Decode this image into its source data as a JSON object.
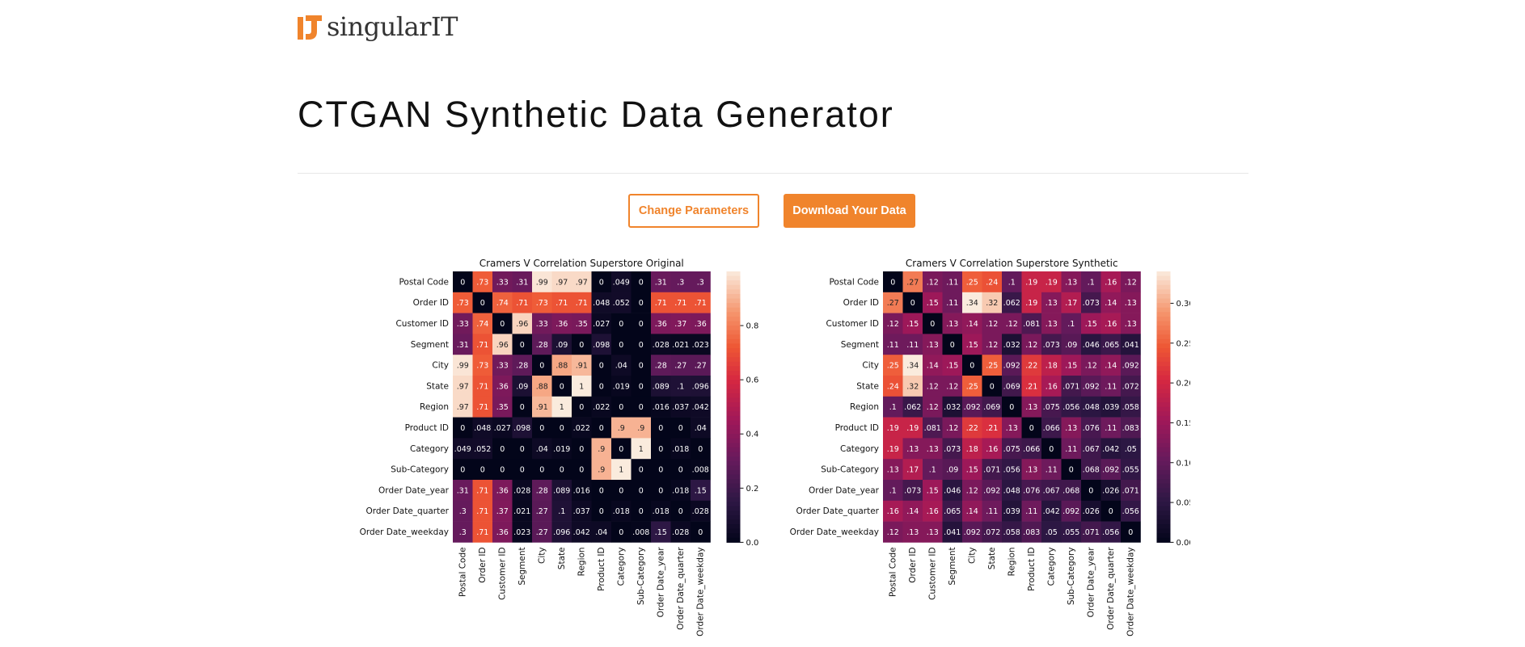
{
  "header": {
    "logo_text": "singularIT"
  },
  "page": {
    "title": "CTGAN Synthetic Data Generator"
  },
  "actions": {
    "change_label": "Change Parameters",
    "download_label": "Download Your Data"
  },
  "colors": {
    "accent": "#f0842c"
  },
  "chart_data": [
    {
      "type": "heatmap",
      "title": "Cramers V Correlation Superstore Original",
      "labels": [
        "Postal Code",
        "Order ID",
        "Customer ID",
        "Segment",
        "City",
        "State",
        "Region",
        "Product ID",
        "Category",
        "Sub-Category",
        "Order Date_year",
        "Order Date_quarter",
        "Order Date_weekday"
      ],
      "values": [
        [
          0,
          0.73,
          0.33,
          0.31,
          0.99,
          0.97,
          0.97,
          0,
          0.049,
          0,
          0.31,
          0.3,
          0.3
        ],
        [
          0.73,
          0,
          0.74,
          0.71,
          0.73,
          0.71,
          0.71,
          0.048,
          0.052,
          0,
          0.71,
          0.71,
          0.71
        ],
        [
          0.33,
          0.74,
          0,
          0.96,
          0.33,
          0.36,
          0.35,
          0.027,
          0,
          0,
          0.36,
          0.37,
          0.36
        ],
        [
          0.31,
          0.71,
          0.96,
          0,
          0.28,
          0.09,
          0,
          0.098,
          0,
          0,
          0.028,
          0.021,
          0.023
        ],
        [
          0.99,
          0.73,
          0.33,
          0.28,
          0,
          0.88,
          0.91,
          0,
          0.04,
          0,
          0.28,
          0.27,
          0.27
        ],
        [
          0.97,
          0.71,
          0.36,
          0.09,
          0.88,
          0,
          1,
          0,
          0.019,
          0,
          0.089,
          0.1,
          0.096
        ],
        [
          0.97,
          0.71,
          0.35,
          0,
          0.91,
          1,
          0,
          0.022,
          0,
          0,
          0.016,
          0.037,
          0.042
        ],
        [
          0,
          0.048,
          0.027,
          0.098,
          0,
          0,
          0.022,
          0,
          0.9,
          0.9,
          0,
          0,
          0.04
        ],
        [
          0.049,
          0.052,
          0,
          0,
          0.04,
          0.019,
          0,
          0.9,
          0,
          1,
          0,
          0.018,
          0
        ],
        [
          0,
          0,
          0,
          0,
          0,
          0,
          0,
          0.9,
          1,
          0,
          0,
          0,
          0.008
        ],
        [
          0.31,
          0.71,
          0.36,
          0.028,
          0.28,
          0.089,
          0.016,
          0,
          0,
          0,
          0,
          0.018,
          0.15
        ],
        [
          0.3,
          0.71,
          0.37,
          0.021,
          0.27,
          0.1,
          0.037,
          0,
          0.018,
          0,
          0.018,
          0,
          0.028
        ],
        [
          0.3,
          0.71,
          0.36,
          0.023,
          0.27,
          0.096,
          0.042,
          0.04,
          0,
          0.008,
          0.15,
          0.028,
          0
        ]
      ],
      "vmin": 0,
      "vmax": 1,
      "colorbar_ticks": [
        "0.0",
        "0.2",
        "0.4",
        "0.6",
        "0.8"
      ],
      "colorbar_tick_values": [
        0,
        0.2,
        0.4,
        0.6,
        0.8
      ]
    },
    {
      "type": "heatmap",
      "title": "Cramers V Correlation Superstore Synthetic",
      "labels": [
        "Postal Code",
        "Order ID",
        "Customer ID",
        "Segment",
        "City",
        "State",
        "Region",
        "Product ID",
        "Category",
        "Sub-Category",
        "Order Date_year",
        "Order Date_quarter",
        "Order Date_weekday"
      ],
      "values": [
        [
          0,
          0.27,
          0.12,
          0.11,
          0.25,
          0.24,
          0.1,
          0.19,
          0.19,
          0.13,
          0.1,
          0.16,
          0.12
        ],
        [
          0.27,
          0,
          0.15,
          0.11,
          0.34,
          0.32,
          0.062,
          0.19,
          0.13,
          0.17,
          0.073,
          0.14,
          0.13
        ],
        [
          0.12,
          0.15,
          0,
          0.13,
          0.14,
          0.12,
          0.12,
          0.081,
          0.13,
          0.1,
          0.15,
          0.16,
          0.13
        ],
        [
          0.11,
          0.11,
          0.13,
          0,
          0.15,
          0.12,
          0.032,
          0.12,
          0.073,
          0.09,
          0.046,
          0.065,
          0.041
        ],
        [
          0.25,
          0.34,
          0.14,
          0.15,
          0,
          0.25,
          0.092,
          0.22,
          0.18,
          0.15,
          0.12,
          0.14,
          0.092
        ],
        [
          0.24,
          0.32,
          0.12,
          0.12,
          0.25,
          0,
          0.069,
          0.21,
          0.16,
          0.071,
          0.092,
          0.11,
          0.072
        ],
        [
          0.1,
          0.062,
          0.12,
          0.032,
          0.092,
          0.069,
          0,
          0.13,
          0.075,
          0.056,
          0.048,
          0.039,
          0.058
        ],
        [
          0.19,
          0.19,
          0.081,
          0.12,
          0.22,
          0.21,
          0.13,
          0,
          0.066,
          0.13,
          0.076,
          0.11,
          0.083
        ],
        [
          0.19,
          0.13,
          0.13,
          0.073,
          0.18,
          0.16,
          0.075,
          0.066,
          0,
          0.11,
          0.067,
          0.042,
          0.05
        ],
        [
          0.13,
          0.17,
          0.1,
          0.09,
          0.15,
          0.071,
          0.056,
          0.13,
          0.11,
          0,
          0.068,
          0.092,
          0.055
        ],
        [
          0.1,
          0.073,
          0.15,
          0.046,
          0.12,
          0.092,
          0.048,
          0.076,
          0.067,
          0.068,
          0,
          0.026,
          0.071
        ],
        [
          0.16,
          0.14,
          0.16,
          0.065,
          0.14,
          0.11,
          0.039,
          0.11,
          0.042,
          0.092,
          0.026,
          0,
          0.056
        ],
        [
          0.12,
          0.13,
          0.13,
          0.041,
          0.092,
          0.072,
          0.058,
          0.083,
          0.05,
          0.055,
          0.071,
          0.056,
          0
        ]
      ],
      "vmin": 0,
      "vmax": 0.34,
      "colorbar_ticks": [
        "0.00",
        "0.05",
        "0.10",
        "0.15",
        "0.20",
        "0.25",
        "0.30"
      ],
      "colorbar_tick_values": [
        0,
        0.05,
        0.1,
        0.15,
        0.2,
        0.25,
        0.3
      ]
    }
  ]
}
